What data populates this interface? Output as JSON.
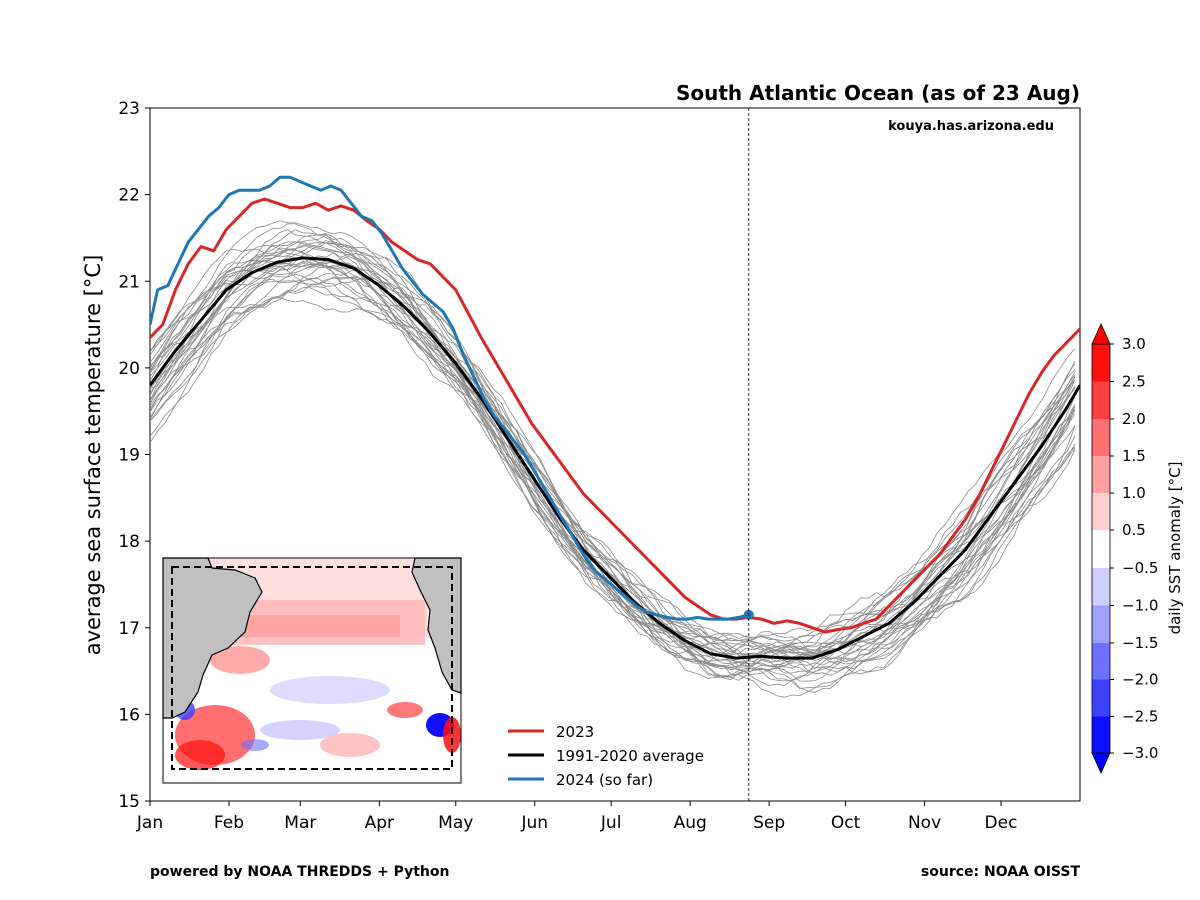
{
  "chart_data": {
    "type": "line",
    "title": "South Atlantic Ocean (as of 23 Aug)",
    "website": "kouya.has.arizona.edu",
    "ylabel": "average sea surface temperature [°C]",
    "xlabel": "",
    "ylim": [
      15,
      23
    ],
    "yticks": [
      15,
      16,
      17,
      18,
      19,
      20,
      21,
      22,
      23
    ],
    "xlim": [
      1,
      366
    ],
    "month_labels": [
      "Jan",
      "Feb",
      "Mar",
      "Apr",
      "May",
      "Jun",
      "Jul",
      "Aug",
      "Sep",
      "Oct",
      "Nov",
      "Dec"
    ],
    "month_days": [
      1,
      32,
      60,
      91,
      121,
      152,
      182,
      213,
      244,
      274,
      305,
      335
    ],
    "current_day_marker": 236,
    "grid": false,
    "legend_placement": "bottom-center",
    "series": [
      {
        "name": "2023",
        "color": "#d62728",
        "x": [
          1,
          6,
          11,
          16,
          21,
          26,
          31,
          36,
          41,
          46,
          51,
          56,
          61,
          66,
          71,
          76,
          81,
          86,
          91,
          96,
          101,
          106,
          111,
          116,
          121,
          131,
          141,
          151,
          161,
          171,
          181,
          191,
          201,
          211,
          216,
          221,
          226,
          231,
          236,
          241,
          246,
          251,
          256,
          261,
          266,
          271,
          276,
          281,
          286,
          291,
          296,
          301,
          306,
          311,
          316,
          321,
          326,
          331,
          336,
          341,
          346,
          351,
          356,
          361,
          366
        ],
        "y": [
          20.35,
          20.5,
          20.9,
          21.2,
          21.4,
          21.35,
          21.6,
          21.75,
          21.9,
          21.95,
          21.9,
          21.85,
          21.85,
          21.9,
          21.82,
          21.87,
          21.82,
          21.7,
          21.6,
          21.45,
          21.35,
          21.25,
          21.2,
          21.05,
          20.9,
          20.35,
          19.85,
          19.35,
          18.95,
          18.55,
          18.25,
          17.95,
          17.65,
          17.35,
          17.25,
          17.15,
          17.1,
          17.1,
          17.12,
          17.1,
          17.05,
          17.08,
          17.05,
          17.0,
          16.95,
          16.98,
          17.0,
          17.05,
          17.1,
          17.25,
          17.4,
          17.55,
          17.7,
          17.85,
          18.05,
          18.25,
          18.5,
          18.8,
          19.1,
          19.4,
          19.7,
          19.95,
          20.15,
          20.3,
          20.45
        ]
      },
      {
        "name": "1991-2020 average",
        "color": "#000000",
        "x": [
          1,
          11,
          21,
          31,
          41,
          51,
          61,
          71,
          81,
          91,
          101,
          111,
          121,
          131,
          141,
          151,
          161,
          171,
          181,
          191,
          201,
          211,
          221,
          231,
          241,
          251,
          261,
          271,
          281,
          291,
          301,
          311,
          321,
          331,
          341,
          351,
          361,
          366
        ],
        "y": [
          19.8,
          20.2,
          20.55,
          20.9,
          21.1,
          21.22,
          21.27,
          21.25,
          21.15,
          20.95,
          20.7,
          20.4,
          20.05,
          19.65,
          19.2,
          18.75,
          18.3,
          17.9,
          17.6,
          17.3,
          17.05,
          16.85,
          16.7,
          16.65,
          16.67,
          16.65,
          16.65,
          16.75,
          16.9,
          17.05,
          17.3,
          17.6,
          17.9,
          18.3,
          18.7,
          19.1,
          19.55,
          19.8
        ]
      },
      {
        "name": "2024 (so far)",
        "color": "#1f77b4",
        "x": [
          1,
          4,
          8,
          12,
          16,
          20,
          24,
          28,
          32,
          36,
          40,
          44,
          48,
          52,
          56,
          60,
          64,
          68,
          72,
          76,
          80,
          84,
          88,
          92,
          96,
          100,
          104,
          108,
          112,
          116,
          120,
          124,
          128,
          132,
          136,
          140,
          144,
          148,
          152,
          156,
          160,
          164,
          168,
          172,
          176,
          180,
          184,
          188,
          192,
          196,
          200,
          204,
          208,
          212,
          216,
          220,
          224,
          228,
          232,
          236
        ],
        "y": [
          20.5,
          20.9,
          20.95,
          21.2,
          21.45,
          21.6,
          21.75,
          21.85,
          22.0,
          22.05,
          22.05,
          22.05,
          22.1,
          22.2,
          22.2,
          22.15,
          22.1,
          22.05,
          22.1,
          22.05,
          21.9,
          21.75,
          21.7,
          21.55,
          21.35,
          21.15,
          21.0,
          20.85,
          20.75,
          20.65,
          20.45,
          20.15,
          19.9,
          19.65,
          19.45,
          19.3,
          19.15,
          19.0,
          18.8,
          18.6,
          18.4,
          18.2,
          18.0,
          17.8,
          17.65,
          17.55,
          17.45,
          17.35,
          17.25,
          17.18,
          17.15,
          17.12,
          17.1,
          17.1,
          17.12,
          17.1,
          17.1,
          17.1,
          17.12,
          17.15
        ]
      }
    ],
    "colorbar": {
      "label": "daily SST anomaly [°C]",
      "ticks": [
        "3.0",
        "2.5",
        "2.0",
        "1.5",
        "1.0",
        "0.5",
        "−0.5",
        "−1.0",
        "−1.5",
        "−2.0",
        "−2.5",
        "−3.0"
      ],
      "bands_top_to_bottom": [
        "#ff0f0f",
        "#ff3f3f",
        "#ff6f6f",
        "#ff9f9f",
        "#ffcfcf",
        "#ffffff",
        "#cfcfff",
        "#9f9fff",
        "#6f6fff",
        "#3f3fff",
        "#0f0fff"
      ]
    }
  },
  "footer": {
    "left": "powered by NOAA THREDDS + Python",
    "right": "source: NOAA OISST"
  }
}
